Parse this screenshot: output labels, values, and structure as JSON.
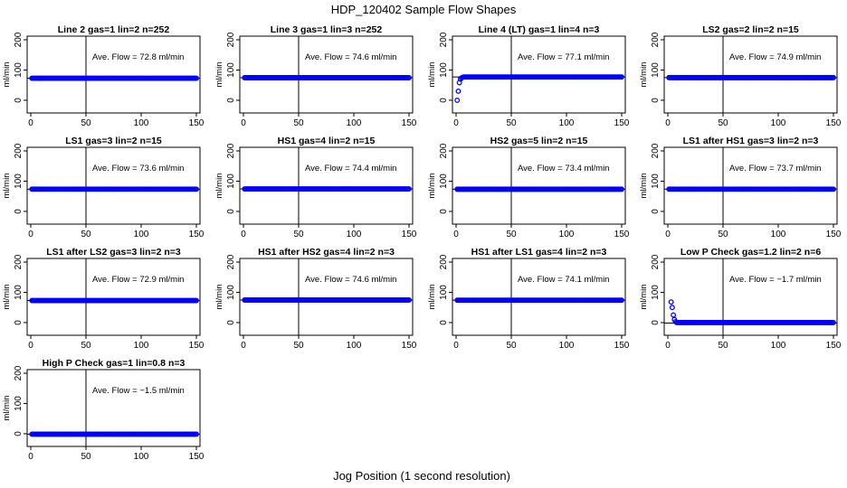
{
  "figure": {
    "title": "HDP_120402  Sample Flow Shapes",
    "xlabel": "Jog Position (1 second resolution)"
  },
  "chart_data": [
    {
      "type": "scatter",
      "title": "Line 2 gas=1 lin=2 n=252",
      "annotation": "Ave. Flow = 72.8  ml/min",
      "ylabel": "ml/min",
      "xlim": [
        0,
        150
      ],
      "ylim": [
        -30,
        200
      ],
      "xticks": [
        0,
        50,
        100,
        150
      ],
      "yticks": [
        0,
        100,
        200
      ],
      "vline_x": 50,
      "hline_y": 72.8,
      "points": {
        "x_start": 1,
        "x_end": 150,
        "step": 1,
        "y": 72.8
      }
    },
    {
      "type": "scatter",
      "title": "Line 3 gas=1 lin=3 n=252",
      "annotation": "Ave. Flow = 74.6  ml/min",
      "ylabel": "ml/min",
      "xlim": [
        0,
        150
      ],
      "ylim": [
        -30,
        200
      ],
      "xticks": [
        0,
        50,
        100,
        150
      ],
      "yticks": [
        0,
        100,
        200
      ],
      "vline_x": 50,
      "hline_y": 74.6,
      "points": {
        "x_start": 1,
        "x_end": 150,
        "step": 1,
        "y": 74.6
      }
    },
    {
      "type": "scatter",
      "title": "Line 4 (LT) gas=1 lin=4 n=3",
      "annotation": "Ave. Flow = 77.1  ml/min",
      "ylabel": "ml/min",
      "xlim": [
        0,
        150
      ],
      "ylim": [
        -30,
        200
      ],
      "xticks": [
        0,
        50,
        100,
        150
      ],
      "yticks": [
        0,
        100,
        200
      ],
      "vline_x": 50,
      "hline_y": 77.1,
      "initial": [
        [
          1,
          0
        ],
        [
          2,
          30
        ],
        [
          3,
          58
        ],
        [
          4,
          70
        ],
        [
          5,
          74
        ],
        [
          6,
          76
        ]
      ],
      "points": {
        "x_start": 7,
        "x_end": 150,
        "step": 1,
        "y": 77.1
      }
    },
    {
      "type": "scatter",
      "title": "LS2 gas=2 lin=2 n=15",
      "annotation": "Ave. Flow = 74.9  ml/min",
      "ylabel": "ml/min",
      "xlim": [
        0,
        150
      ],
      "ylim": [
        -30,
        200
      ],
      "xticks": [
        0,
        50,
        100,
        150
      ],
      "yticks": [
        0,
        100,
        200
      ],
      "vline_x": 50,
      "hline_y": 74.9,
      "points": {
        "x_start": 1,
        "x_end": 150,
        "step": 1,
        "y": 74.9
      }
    },
    {
      "type": "scatter",
      "title": "LS1 gas=3 lin=2 n=15",
      "annotation": "Ave. Flow = 73.6  ml/min",
      "ylabel": "ml/min",
      "xlim": [
        0,
        150
      ],
      "ylim": [
        -30,
        200
      ],
      "xticks": [
        0,
        50,
        100,
        150
      ],
      "yticks": [
        0,
        100,
        200
      ],
      "vline_x": 50,
      "hline_y": 73.6,
      "points": {
        "x_start": 1,
        "x_end": 150,
        "step": 1,
        "y": 73.6
      }
    },
    {
      "type": "scatter",
      "title": "HS1 gas=4 lin=2 n=15",
      "annotation": "Ave. Flow = 74.4  ml/min",
      "ylabel": "ml/min",
      "xlim": [
        0,
        150
      ],
      "ylim": [
        -30,
        200
      ],
      "xticks": [
        0,
        50,
        100,
        150
      ],
      "yticks": [
        0,
        100,
        200
      ],
      "vline_x": 50,
      "hline_y": 74.4,
      "points": {
        "x_start": 1,
        "x_end": 150,
        "step": 1,
        "y": 74.4
      }
    },
    {
      "type": "scatter",
      "title": "HS2 gas=5 lin=2 n=15",
      "annotation": "Ave. Flow = 73.4  ml/min",
      "ylabel": "ml/min",
      "xlim": [
        0,
        150
      ],
      "ylim": [
        -30,
        200
      ],
      "xticks": [
        0,
        50,
        100,
        150
      ],
      "yticks": [
        0,
        100,
        200
      ],
      "vline_x": 50,
      "hline_y": 73.4,
      "points": {
        "x_start": 1,
        "x_end": 150,
        "step": 1,
        "y": 73.4
      }
    },
    {
      "type": "scatter",
      "title": "LS1 after HS1 gas=3 lin=2 n=3",
      "annotation": "Ave. Flow = 73.7  ml/min",
      "ylabel": "ml/min",
      "xlim": [
        0,
        150
      ],
      "ylim": [
        -30,
        200
      ],
      "xticks": [
        0,
        50,
        100,
        150
      ],
      "yticks": [
        0,
        100,
        200
      ],
      "vline_x": 50,
      "hline_y": 73.7,
      "points": {
        "x_start": 1,
        "x_end": 150,
        "step": 1,
        "y": 73.7
      }
    },
    {
      "type": "scatter",
      "title": "LS1 after LS2 gas=3 lin=2 n=3",
      "annotation": "Ave. Flow = 72.9  ml/min",
      "ylabel": "ml/min",
      "xlim": [
        0,
        150
      ],
      "ylim": [
        -30,
        200
      ],
      "xticks": [
        0,
        50,
        100,
        150
      ],
      "yticks": [
        0,
        100,
        200
      ],
      "vline_x": 50,
      "hline_y": 72.9,
      "points": {
        "x_start": 1,
        "x_end": 150,
        "step": 1,
        "y": 72.9
      }
    },
    {
      "type": "scatter",
      "title": "HS1 after HS2 gas=4 lin=2 n=3",
      "annotation": "Ave. Flow = 74.6  ml/min",
      "ylabel": "ml/min",
      "xlim": [
        0,
        150
      ],
      "ylim": [
        -30,
        200
      ],
      "xticks": [
        0,
        50,
        100,
        150
      ],
      "yticks": [
        0,
        100,
        200
      ],
      "vline_x": 50,
      "hline_y": 74.6,
      "points": {
        "x_start": 1,
        "x_end": 150,
        "step": 1,
        "y": 74.6
      }
    },
    {
      "type": "scatter",
      "title": "HS1 after LS1 gas=4 lin=2 n=3",
      "annotation": "Ave. Flow = 74.1  ml/min",
      "ylabel": "ml/min",
      "xlim": [
        0,
        150
      ],
      "ylim": [
        -30,
        200
      ],
      "xticks": [
        0,
        50,
        100,
        150
      ],
      "yticks": [
        0,
        100,
        200
      ],
      "vline_x": 50,
      "hline_y": 74.1,
      "points": {
        "x_start": 1,
        "x_end": 150,
        "step": 1,
        "y": 74.1
      }
    },
    {
      "type": "scatter",
      "title": "Low P Check gas=1.2 lin=2 n=6",
      "annotation": "Ave. Flow = −1.7  ml/min",
      "ylabel": "ml/min",
      "xlim": [
        0,
        150
      ],
      "ylim": [
        -30,
        200
      ],
      "xticks": [
        0,
        50,
        100,
        150
      ],
      "yticks": [
        0,
        100,
        200
      ],
      "vline_x": 50,
      "hline_y": -1.7,
      "initial": [
        [
          3,
          68
        ],
        [
          4,
          50
        ],
        [
          5,
          25
        ],
        [
          6,
          10
        ],
        [
          7,
          3
        ],
        [
          8,
          0
        ]
      ],
      "points": {
        "x_start": 9,
        "x_end": 150,
        "step": 1,
        "y": 0
      }
    },
    {
      "type": "scatter",
      "title": "High P Check gas=1 lin=0.8 n=3",
      "annotation": "Ave. Flow = −1.5  ml/min",
      "ylabel": "ml/min",
      "xlim": [
        0,
        150
      ],
      "ylim": [
        -30,
        200
      ],
      "xticks": [
        0,
        50,
        100,
        150
      ],
      "yticks": [
        0,
        100,
        200
      ],
      "vline_x": 50,
      "hline_y": -1.5,
      "points": {
        "x_start": 1,
        "x_end": 150,
        "step": 1,
        "y": -1.5
      }
    }
  ],
  "colors": {
    "points": "#0000ff",
    "axis": "#000000",
    "background": "#ffffff"
  }
}
